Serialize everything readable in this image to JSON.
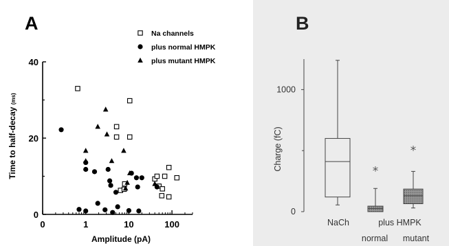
{
  "chart_data": [
    {
      "panel_label": "A",
      "type": "scatter",
      "xlabel": "Amplitude (pA)",
      "ylabel": "Time to half-decay",
      "ylabel_unit": "(ms)",
      "x_scale": "log",
      "xlim": [
        0.1,
        300
      ],
      "ylim": [
        0,
        40
      ],
      "x_ticks": [
        {
          "value": 0.1,
          "label": "0"
        },
        {
          "value": 1,
          "label": "1"
        },
        {
          "value": 10,
          "label": "10"
        },
        {
          "value": 100,
          "label": "100"
        }
      ],
      "y_ticks": [
        {
          "value": 0,
          "label": "0"
        },
        {
          "value": 20,
          "label": "20"
        },
        {
          "value": 40,
          "label": "40"
        }
      ],
      "series": [
        {
          "name": "Na channels",
          "marker": "open-square",
          "points": [
            {
              "x": 0.65,
              "y": 33.0
            },
            {
              "x": 10.5,
              "y": 29.8
            },
            {
              "x": 5.2,
              "y": 23.0
            },
            {
              "x": 5.2,
              "y": 20.3
            },
            {
              "x": 10.5,
              "y": 20.3
            },
            {
              "x": 8.0,
              "y": 8.0
            },
            {
              "x": 6.4,
              "y": 6.3
            },
            {
              "x": 7.8,
              "y": 6.6
            },
            {
              "x": 40,
              "y": 9.3
            },
            {
              "x": 45,
              "y": 10.0
            },
            {
              "x": 68,
              "y": 10.0
            },
            {
              "x": 85,
              "y": 12.3
            },
            {
              "x": 130,
              "y": 9.6
            },
            {
              "x": 50,
              "y": 7.4
            },
            {
              "x": 60,
              "y": 6.7
            },
            {
              "x": 58,
              "y": 4.9
            },
            {
              "x": 85,
              "y": 4.6
            }
          ]
        },
        {
          "name": "plus normal HMPK",
          "marker": "filled-circle",
          "points": [
            {
              "x": 0.27,
              "y": 22.2
            },
            {
              "x": 1.0,
              "y": 13.6
            },
            {
              "x": 1.0,
              "y": 11.8
            },
            {
              "x": 1.6,
              "y": 11.2
            },
            {
              "x": 3.3,
              "y": 11.8
            },
            {
              "x": 3.6,
              "y": 8.8
            },
            {
              "x": 3.8,
              "y": 7.6
            },
            {
              "x": 11.5,
              "y": 10.8
            },
            {
              "x": 15,
              "y": 9.6
            },
            {
              "x": 20,
              "y": 9.6
            },
            {
              "x": 16,
              "y": 7.2
            },
            {
              "x": 5.0,
              "y": 5.8
            },
            {
              "x": 45,
              "y": 7.2
            },
            {
              "x": 0.7,
              "y": 1.3
            },
            {
              "x": 1.0,
              "y": 0.9
            },
            {
              "x": 1.9,
              "y": 2.9
            },
            {
              "x": 2.8,
              "y": 1.2
            },
            {
              "x": 4.2,
              "y": 0.5
            },
            {
              "x": 5.5,
              "y": 2.0
            },
            {
              "x": 10,
              "y": 1.0
            },
            {
              "x": 17,
              "y": 0.9
            }
          ]
        },
        {
          "name": "plus mutant HMPK",
          "marker": "filled-triangle",
          "points": [
            {
              "x": 2.9,
              "y": 27.5
            },
            {
              "x": 1.9,
              "y": 23.0
            },
            {
              "x": 1.0,
              "y": 16.7
            },
            {
              "x": 3.1,
              "y": 21.0
            },
            {
              "x": 4.0,
              "y": 14.0
            },
            {
              "x": 7.6,
              "y": 16.7
            },
            {
              "x": 1.0,
              "y": 14.0
            },
            {
              "x": 10.5,
              "y": 10.8
            },
            {
              "x": 9.2,
              "y": 8.3
            },
            {
              "x": 8.4,
              "y": 6.8
            },
            {
              "x": 40,
              "y": 8.0
            }
          ]
        }
      ]
    },
    {
      "panel_label": "B",
      "type": "boxplot",
      "ylabel": "Charge (fC)",
      "ylim": [
        0,
        1250
      ],
      "y_ticks": [
        {
          "value": 0,
          "label": "0"
        },
        {
          "value": 1000,
          "label": "1000"
        }
      ],
      "group_label": "plus HMPK",
      "boxes": [
        {
          "label": "NaCh",
          "min": 55,
          "q1": 120,
          "median": 410,
          "q3": 600,
          "max": 1240,
          "outliers": [],
          "fill": "none"
        },
        {
          "label": "normal",
          "min": 0,
          "q1": 0,
          "median": 25,
          "q3": 45,
          "max": 190,
          "outliers": [
            340
          ],
          "fill": "dotted"
        },
        {
          "label": "mutant",
          "min": 30,
          "q1": 65,
          "median": 130,
          "q3": 185,
          "max": 330,
          "outliers": [
            510
          ],
          "fill": "dotted"
        }
      ]
    }
  ]
}
